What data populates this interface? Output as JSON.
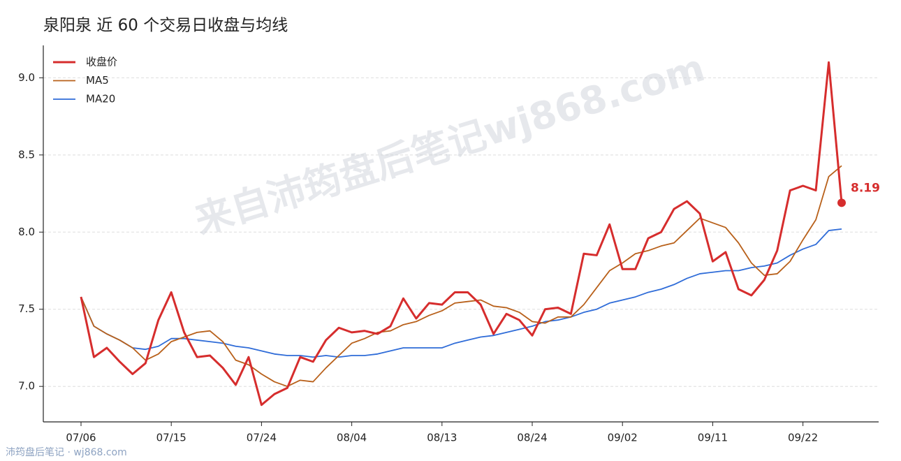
{
  "chart_data": {
    "type": "line",
    "title": "泉阳泉 近 60 个交易日收盘与均线",
    "watermark": "来自沛筠盘后笔记wj868.com",
    "footer": "沛筠盘后笔记 · wj868.com",
    "categories": [
      "07/06",
      null,
      null,
      null,
      null,
      null,
      null,
      "07/15",
      null,
      null,
      null,
      null,
      null,
      null,
      "07/24",
      null,
      null,
      null,
      null,
      null,
      null,
      "08/04",
      null,
      null,
      null,
      null,
      null,
      null,
      "08/13",
      null,
      null,
      null,
      null,
      null,
      null,
      "08/24",
      null,
      null,
      null,
      null,
      null,
      null,
      "09/02",
      null,
      null,
      null,
      null,
      null,
      null,
      "09/11",
      null,
      null,
      null,
      null,
      null,
      null,
      "09/22",
      null,
      null,
      null
    ],
    "series": [
      {
        "name": "收盘价",
        "color": "#d62d2d",
        "width": 3,
        "values": [
          7.58,
          7.19,
          7.25,
          7.16,
          7.08,
          7.15,
          7.43,
          7.61,
          7.35,
          7.19,
          7.2,
          7.12,
          7.01,
          7.19,
          6.88,
          6.95,
          6.99,
          7.19,
          7.16,
          7.3,
          7.38,
          7.35,
          7.36,
          7.34,
          7.39,
          7.57,
          7.44,
          7.54,
          7.53,
          7.61,
          7.61,
          7.53,
          7.34,
          7.47,
          7.43,
          7.33,
          7.5,
          7.51,
          7.47,
          7.86,
          7.85,
          8.05,
          7.76,
          7.76,
          7.96,
          8.0,
          8.15,
          8.2,
          8.12,
          7.81,
          7.87,
          7.63,
          7.59,
          7.69,
          7.88,
          8.27,
          8.3,
          8.27,
          9.1,
          8.19
        ]
      },
      {
        "name": "MA5",
        "color": "#b8601a",
        "width": 1.8,
        "values": [
          7.58,
          7.39,
          7.34,
          7.3,
          7.25,
          7.17,
          7.21,
          7.29,
          7.32,
          7.35,
          7.36,
          7.29,
          7.17,
          7.14,
          7.08,
          7.03,
          7.0,
          7.04,
          7.03,
          7.12,
          7.2,
          7.28,
          7.31,
          7.35,
          7.36,
          7.4,
          7.42,
          7.46,
          7.49,
          7.54,
          7.55,
          7.56,
          7.52,
          7.51,
          7.48,
          7.42,
          7.41,
          7.45,
          7.45,
          7.53,
          7.64,
          7.75,
          7.8,
          7.86,
          7.88,
          7.91,
          7.93,
          8.01,
          8.09,
          8.06,
          8.03,
          7.93,
          7.8,
          7.72,
          7.73,
          7.81,
          7.95,
          8.08,
          8.36,
          8.43
        ]
      },
      {
        "name": "MA20",
        "color": "#2f6cd8",
        "width": 1.8,
        "values": [
          7.58,
          7.39,
          7.34,
          7.3,
          7.25,
          7.24,
          7.26,
          7.31,
          7.31,
          7.3,
          7.29,
          7.28,
          7.26,
          7.25,
          7.23,
          7.21,
          7.2,
          7.2,
          7.19,
          7.2,
          7.19,
          7.2,
          7.2,
          7.21,
          7.23,
          7.25,
          7.25,
          7.25,
          7.25,
          7.28,
          7.3,
          7.32,
          7.33,
          7.35,
          7.37,
          7.39,
          7.42,
          7.43,
          7.45,
          7.48,
          7.5,
          7.54,
          7.56,
          7.58,
          7.61,
          7.63,
          7.66,
          7.7,
          7.73,
          7.74,
          7.75,
          7.75,
          7.77,
          7.78,
          7.8,
          7.85,
          7.89,
          7.92,
          8.01,
          8.02
        ]
      }
    ],
    "ylim": [
      6.77,
      9.21
    ],
    "yticks": [
      {
        "value": 7,
        "label": "7.0"
      },
      7.5,
      {
        "value": 8,
        "label": "8.0"
      },
      8.5,
      {
        "value": 9,
        "label": "9.0"
      }
    ],
    "grid": true,
    "legend": "upper left"
  }
}
